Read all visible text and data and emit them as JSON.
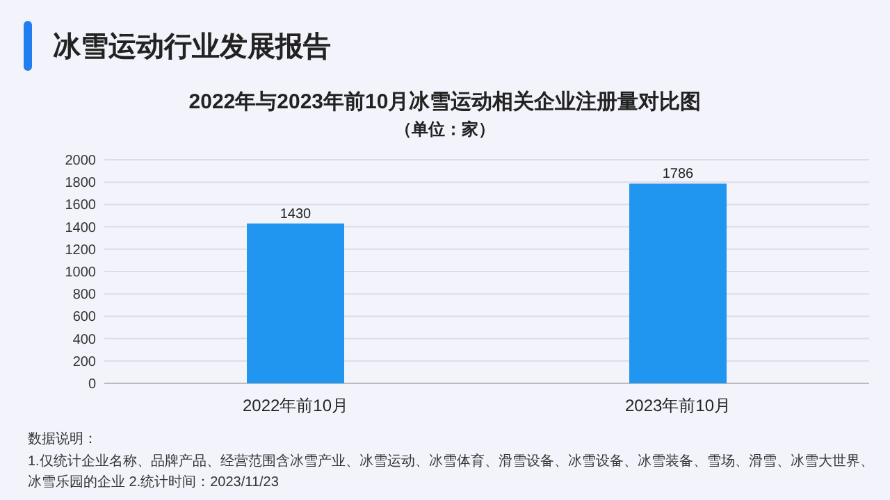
{
  "chart_data": {
    "type": "bar",
    "title": "冰雪运动行业发展报告",
    "subtitle": "2022年与2023年前10月冰雪运动相关企业注册量对比图",
    "categories": [
      "2022年前10月",
      "2023年前10月"
    ],
    "values": [
      1430,
      1786
    ],
    "color": "#2196f0",
    "ylim": [
      0,
      2000
    ],
    "yticks": [
      0,
      200,
      400,
      600,
      800,
      1000,
      1200,
      1400,
      1600,
      1800,
      2000
    ],
    "grid": "y",
    "data_labels": true,
    "annotations": [
      "（单位：家）",
      "数据说明：",
      "1.仅统计企业名称、品牌产品、经营范围含冰雪产业、冰雪运动、冰雪体育、滑雪设备、冰雪设备、冰雪装备、雪场、滑雪、冰雪大世界、冰雪乐园的企业  2.统计时间：2023/11/23"
    ]
  }
}
